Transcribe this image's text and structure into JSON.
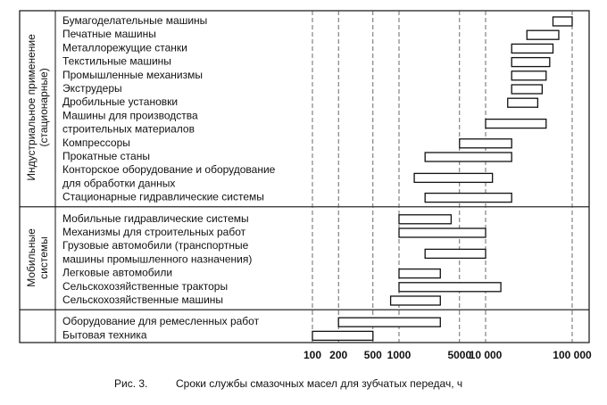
{
  "chart_data": {
    "type": "bar",
    "orientation": "horizontal-range",
    "x_scale": "log",
    "x_unit": "ч",
    "xlim": [
      100,
      100000
    ],
    "x_ticks": [
      {
        "value": 100,
        "label": "100"
      },
      {
        "value": 200,
        "label": "200"
      },
      {
        "value": 500,
        "label": "500"
      },
      {
        "value": 1000,
        "label": "1000"
      },
      {
        "value": 5000,
        "label": "5000"
      },
      {
        "value": 10000,
        "label": "10 000"
      },
      {
        "value": 100000,
        "label": "100 000"
      }
    ],
    "grid_x": true,
    "caption": {
      "number": "Рис. 3.",
      "text": "Сроки службы смазочных масел для зубчатых передач, ч"
    },
    "groups": [
      {
        "name_lines": [
          "Индустриальное применение",
          "(стационарные)"
        ],
        "rows": [
          {
            "label_lines": [
              "Бумагоделательные машины"
            ],
            "range": [
              60000,
              100000
            ]
          },
          {
            "label_lines": [
              "Печатные машины"
            ],
            "range": [
              30000,
              70000
            ]
          },
          {
            "label_lines": [
              "Металлорежущие станки"
            ],
            "range": [
              20000,
              60000
            ]
          },
          {
            "label_lines": [
              "Текстильные машины"
            ],
            "range": [
              20000,
              55000
            ]
          },
          {
            "label_lines": [
              "Промышленные механизмы"
            ],
            "range": [
              20000,
              50000
            ]
          },
          {
            "label_lines": [
              "Экструдеры"
            ],
            "range": [
              20000,
              45000
            ]
          },
          {
            "label_lines": [
              "Дробильные установки"
            ],
            "range": [
              18000,
              40000
            ]
          },
          {
            "label_lines": [
              "Машины для производства",
              "строительных материалов"
            ],
            "range": [
              10000,
              50000
            ]
          },
          {
            "label_lines": [
              "Компрессоры"
            ],
            "range": [
              5000,
              20000
            ]
          },
          {
            "label_lines": [
              "Прокатные станы"
            ],
            "range": [
              2000,
              20000
            ]
          },
          {
            "label_lines": [
              "Конторское оборудование и оборудование",
              "для обработки данных"
            ],
            "range": [
              1500,
              12000
            ]
          },
          {
            "label_lines": [
              "Стационарные гидравлические системы"
            ],
            "range": [
              2000,
              20000
            ]
          }
        ]
      },
      {
        "name_lines": [
          "Мобильные",
          "системы"
        ],
        "rows": [
          {
            "label_lines": [
              "Мобильные гидравлические системы"
            ],
            "range": [
              1000,
              4000
            ]
          },
          {
            "label_lines": [
              "Механизмы для строительных работ"
            ],
            "range": [
              1000,
              10000
            ]
          },
          {
            "label_lines": [
              "Грузовые автомобили (транспортные",
              "машины промышленного назначения)"
            ],
            "range": [
              2000,
              10000
            ]
          },
          {
            "label_lines": [
              "Легковые автомобили"
            ],
            "range": [
              1000,
              3000
            ]
          },
          {
            "label_lines": [
              "Сельскохозяйственные тракторы"
            ],
            "range": [
              1000,
              15000
            ]
          },
          {
            "label_lines": [
              "Сельскохозяйственные машины"
            ],
            "range": [
              800,
              3000
            ]
          }
        ]
      },
      {
        "name_lines": [],
        "rows": [
          {
            "label_lines": [
              "Оборудование для ремесленных работ"
            ],
            "range": [
              200,
              3000
            ]
          },
          {
            "label_lines": [
              "Бытовая техника"
            ],
            "range": [
              100,
              500
            ]
          }
        ]
      }
    ]
  }
}
